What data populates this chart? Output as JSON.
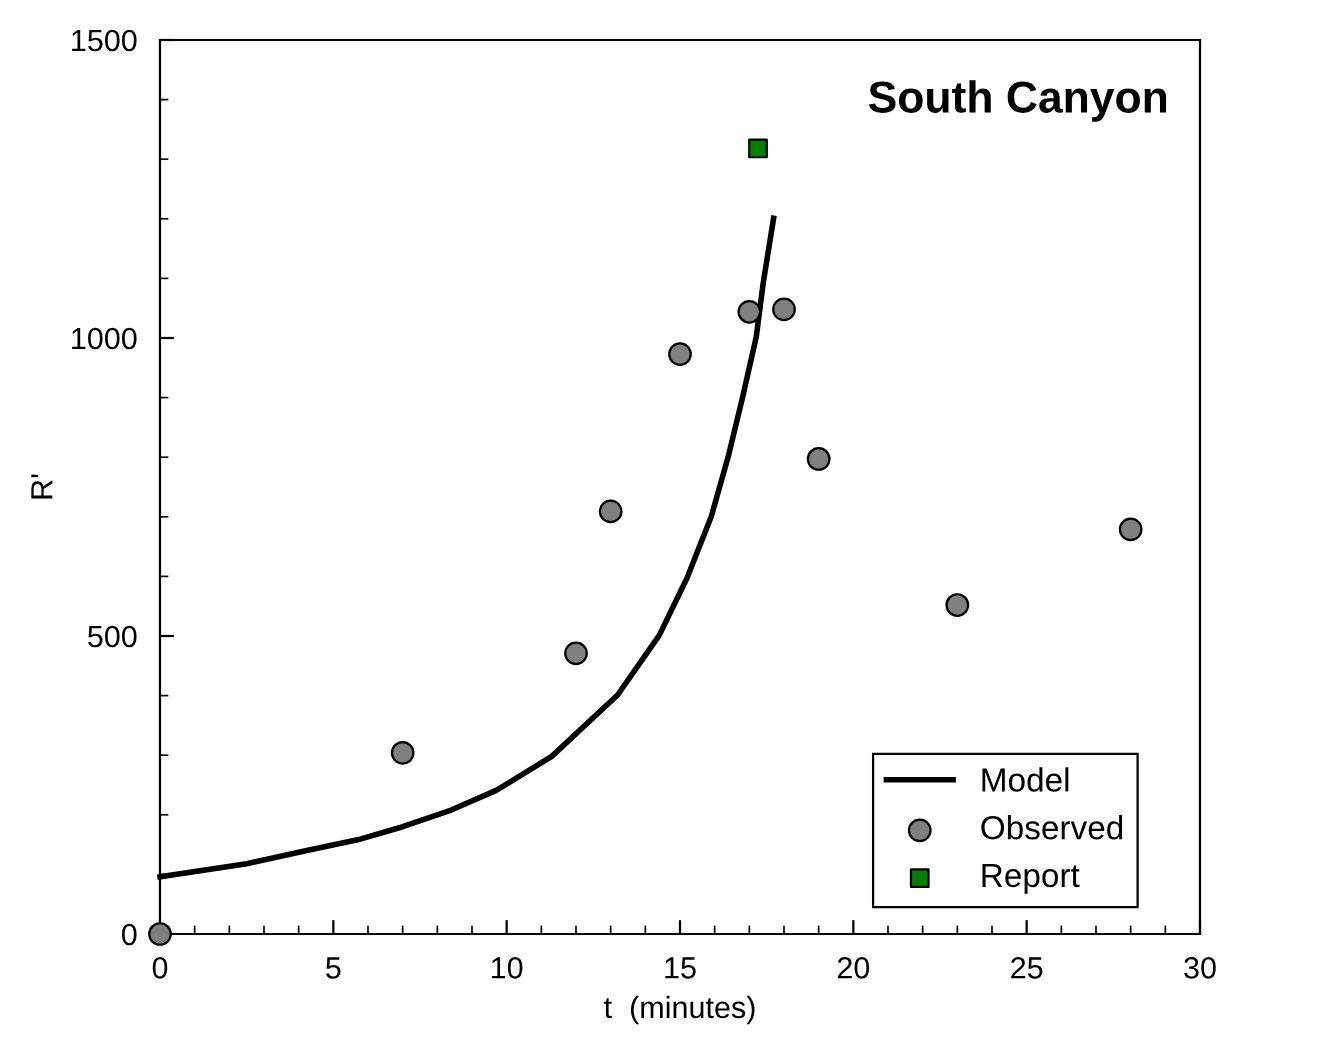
{
  "chart_data": {
    "type": "scatter",
    "title": "South Canyon",
    "xlabel": "t  (minutes)",
    "ylabel": "R'",
    "xlim": [
      0,
      30
    ],
    "xticks": [
      0,
      5,
      10,
      15,
      20,
      25,
      30
    ],
    "ylim": [
      0,
      1500
    ],
    "yticks": [
      0,
      500,
      1000,
      1500
    ],
    "grid": false,
    "legend": "bottom right",
    "series": [
      {
        "name": "Model",
        "type": "line",
        "color": "#000000",
        "marker": "none",
        "line_style": "solid",
        "x": [
          0,
          2.5,
          4.3,
          5.7,
          7.0,
          8.4,
          9.7,
          11.3,
          13.2,
          14.4,
          15.2,
          15.9,
          16.4,
          16.8,
          17.2,
          17.4,
          17.7
        ],
        "values": [
          96,
          118,
          141,
          158,
          180,
          208,
          241,
          298,
          401,
          501,
          597,
          700,
          803,
          899,
          1002,
          1092,
          1201
        ]
      },
      {
        "name": "Observed",
        "color": "#808080",
        "marker": "circle",
        "x": [
          0,
          7,
          12,
          13,
          15,
          17,
          18,
          19,
          23,
          28
        ],
        "values": [
          0,
          304,
          471,
          709,
          973,
          1044,
          1048,
          797,
          552,
          679
        ]
      },
      {
        "name": "Report",
        "color": "#008000",
        "marker": "square",
        "x": [
          17.25
        ],
        "values": [
          1318
        ]
      }
    ]
  }
}
